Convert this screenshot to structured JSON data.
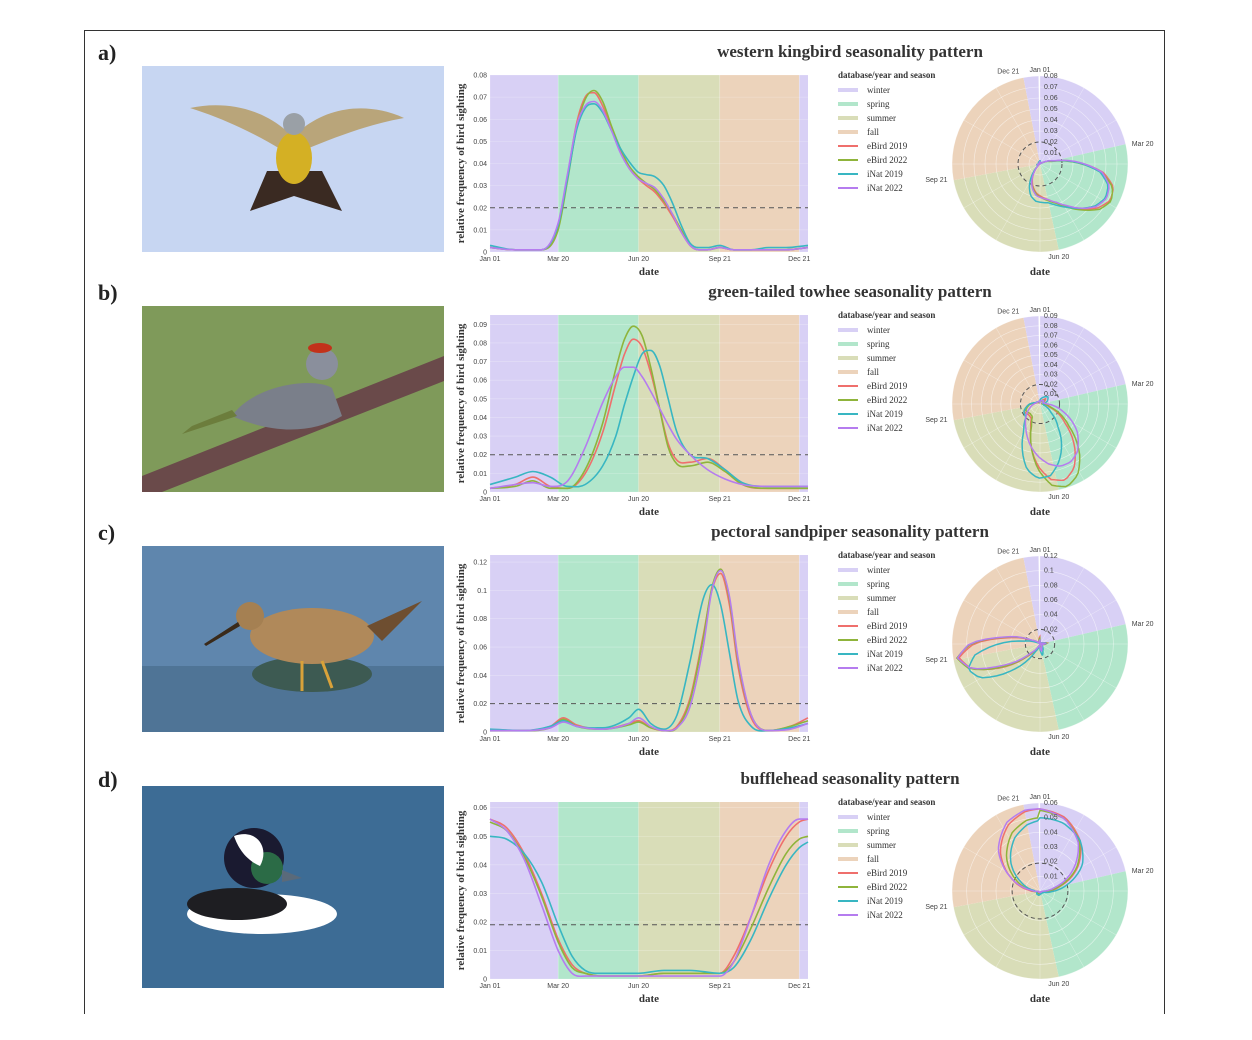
{
  "colors": {
    "winter": "#d8d0f5",
    "spring": "#b2e6cb",
    "summer": "#d9ddb8",
    "fall": "#ecd3bb",
    "eBird 2019": "#ef6f6c",
    "eBird 2022": "#8fb43b",
    "iNat 2019": "#38b6c2",
    "iNat 2022": "#b57cef"
  },
  "panels": [
    {
      "label": "a)",
      "title": "western kingbird seasonality pattern",
      "photo_icon": "western-kingbird-photo",
      "legend_title": "database/year and season",
      "legend_items": [
        "winter",
        "spring",
        "summer",
        "fall",
        "eBird 2019",
        "eBird 2022",
        "iNat 2019",
        "iNat 2022"
      ],
      "xlabel": "date",
      "ylabel": "relative frequency of bird sighting",
      "polar_xlabel": "date"
    },
    {
      "label": "b)",
      "title": "green-tailed towhee seasonality pattern",
      "photo_icon": "green-tailed-towhee-photo",
      "legend_title": "database/year and season",
      "legend_items": [
        "winter",
        "spring",
        "summer",
        "fall",
        "eBird 2019",
        "eBird 2022",
        "iNat 2019",
        "iNat 2022"
      ],
      "xlabel": "date",
      "ylabel": "relative frequency of bird sighting",
      "polar_xlabel": "date"
    },
    {
      "label": "c)",
      "title": "pectoral sandpiper seasonality pattern",
      "photo_icon": "pectoral-sandpiper-photo",
      "legend_title": "database/year and season",
      "legend_items": [
        "winter",
        "spring",
        "summer",
        "fall",
        "eBird 2019",
        "eBird 2022",
        "iNat 2019",
        "iNat 2022"
      ],
      "xlabel": "date",
      "ylabel": "relative frequency of bird sighting",
      "polar_xlabel": "date"
    },
    {
      "label": "d)",
      "title": "bufflehead seasonality pattern",
      "photo_icon": "bufflehead-photo",
      "legend_title": "database/year and season",
      "legend_items": [
        "winter",
        "spring",
        "summer",
        "fall",
        "eBird 2019",
        "eBird 2022",
        "iNat 2019",
        "iNat 2022"
      ],
      "xlabel": "date",
      "ylabel": "relative frequency of bird sighting",
      "polar_xlabel": "date"
    }
  ],
  "chart_data": [
    {
      "type": "line",
      "title": "western kingbird seasonality pattern",
      "xlabel": "date",
      "ylabel": "relative frequency of bird sighting",
      "x_ticks": [
        "Jan 01",
        "Mar 20",
        "Jun 20",
        "Sep 21",
        "Dec 21"
      ],
      "x_tick_days": [
        1,
        79,
        171,
        264,
        355
      ],
      "y_ticks": [
        0,
        0.01,
        0.02,
        0.03,
        0.04,
        0.05,
        0.06,
        0.07,
        0.08
      ],
      "ylim": [
        0,
        0.08
      ],
      "threshold": 0.02,
      "seasons": [
        {
          "name": "winter",
          "start": 1,
          "end": 79
        },
        {
          "name": "spring",
          "start": 79,
          "end": 171
        },
        {
          "name": "summer",
          "start": 171,
          "end": 264
        },
        {
          "name": "fall",
          "start": 264,
          "end": 355
        },
        {
          "name": "winter",
          "start": 355,
          "end": 365
        }
      ],
      "x_days": [
        1,
        30,
        60,
        79,
        90,
        100,
        110,
        120,
        130,
        140,
        150,
        160,
        171,
        180,
        190,
        200,
        210,
        220,
        230,
        240,
        250,
        264,
        280,
        300,
        320,
        340,
        365
      ],
      "series": [
        {
          "name": "eBird 2019",
          "values": [
            0.002,
            0.001,
            0.001,
            0.012,
            0.035,
            0.058,
            0.07,
            0.072,
            0.066,
            0.056,
            0.046,
            0.038,
            0.033,
            0.03,
            0.027,
            0.022,
            0.016,
            0.009,
            0.003,
            0.001,
            0.001,
            0.002,
            0.001,
            0.001,
            0.001,
            0.001,
            0.002
          ]
        },
        {
          "name": "eBird 2022",
          "values": [
            0.002,
            0.001,
            0.001,
            0.01,
            0.033,
            0.056,
            0.069,
            0.073,
            0.068,
            0.057,
            0.047,
            0.039,
            0.034,
            0.031,
            0.028,
            0.023,
            0.017,
            0.01,
            0.003,
            0.001,
            0.001,
            0.002,
            0.001,
            0.001,
            0.001,
            0.001,
            0.002
          ]
        },
        {
          "name": "iNat 2019",
          "values": [
            0.003,
            0.001,
            0.001,
            0.012,
            0.034,
            0.055,
            0.065,
            0.067,
            0.063,
            0.055,
            0.047,
            0.041,
            0.036,
            0.035,
            0.034,
            0.03,
            0.022,
            0.012,
            0.004,
            0.002,
            0.002,
            0.003,
            0.001,
            0.001,
            0.002,
            0.002,
            0.003
          ]
        },
        {
          "name": "iNat 2022",
          "values": [
            0.002,
            0.001,
            0.001,
            0.013,
            0.036,
            0.057,
            0.066,
            0.068,
            0.064,
            0.055,
            0.045,
            0.038,
            0.033,
            0.031,
            0.029,
            0.024,
            0.017,
            0.009,
            0.003,
            0.001,
            0.001,
            0.002,
            0.001,
            0.001,
            0.001,
            0.001,
            0.002
          ]
        }
      ],
      "polar": {
        "ticks": [
          0.01,
          0.02,
          0.03,
          0.04,
          0.05,
          0.06,
          0.07,
          0.08
        ],
        "max": 0.08,
        "angle_labels": [
          "Jan 01",
          "Mar 20",
          "Jun 20",
          "Sep 21",
          "Dec 21"
        ]
      }
    },
    {
      "type": "line",
      "title": "green-tailed towhee seasonality pattern",
      "xlabel": "date",
      "ylabel": "relative frequency of bird sighting",
      "x_ticks": [
        "Jan 01",
        "Mar 20",
        "Jun 20",
        "Sep 21",
        "Dec 21"
      ],
      "x_tick_days": [
        1,
        79,
        171,
        264,
        355
      ],
      "y_ticks": [
        0,
        0.01,
        0.02,
        0.03,
        0.04,
        0.05,
        0.06,
        0.07,
        0.08,
        0.09
      ],
      "ylim": [
        0,
        0.095
      ],
      "threshold": 0.02,
      "seasons": [
        {
          "name": "winter",
          "start": 1,
          "end": 79
        },
        {
          "name": "spring",
          "start": 79,
          "end": 171
        },
        {
          "name": "summer",
          "start": 171,
          "end": 264
        },
        {
          "name": "fall",
          "start": 264,
          "end": 355
        },
        {
          "name": "winter",
          "start": 355,
          "end": 365
        }
      ],
      "x_days": [
        1,
        30,
        50,
        70,
        90,
        110,
        130,
        145,
        155,
        165,
        175,
        185,
        195,
        205,
        215,
        230,
        250,
        270,
        290,
        320,
        365
      ],
      "series": [
        {
          "name": "eBird 2019",
          "values": [
            0.002,
            0.004,
            0.008,
            0.003,
            0.002,
            0.01,
            0.032,
            0.058,
            0.074,
            0.082,
            0.078,
            0.064,
            0.045,
            0.026,
            0.017,
            0.016,
            0.018,
            0.012,
            0.004,
            0.002,
            0.002
          ]
        },
        {
          "name": "eBird 2022",
          "values": [
            0.002,
            0.003,
            0.006,
            0.002,
            0.002,
            0.012,
            0.037,
            0.066,
            0.082,
            0.089,
            0.084,
            0.067,
            0.045,
            0.024,
            0.015,
            0.014,
            0.016,
            0.011,
            0.004,
            0.002,
            0.002
          ]
        },
        {
          "name": "iNat 2019",
          "values": [
            0.004,
            0.008,
            0.011,
            0.008,
            0.003,
            0.004,
            0.014,
            0.03,
            0.047,
            0.062,
            0.074,
            0.076,
            0.068,
            0.05,
            0.032,
            0.02,
            0.018,
            0.012,
            0.005,
            0.003,
            0.003
          ]
        },
        {
          "name": "iNat 2022",
          "values": [
            0.002,
            0.004,
            0.005,
            0.003,
            0.006,
            0.024,
            0.048,
            0.062,
            0.067,
            0.067,
            0.062,
            0.054,
            0.045,
            0.036,
            0.028,
            0.02,
            0.012,
            0.007,
            0.004,
            0.003,
            0.003
          ]
        }
      ],
      "polar": {
        "ticks": [
          0.01,
          0.02,
          0.03,
          0.04,
          0.05,
          0.06,
          0.07,
          0.08,
          0.09
        ],
        "max": 0.09,
        "angle_labels": [
          "Jan 01",
          "Mar 20",
          "Jun 20",
          "Sep 21",
          "Dec 21"
        ]
      }
    },
    {
      "type": "line",
      "title": "pectoral sandpiper seasonality pattern",
      "xlabel": "date",
      "ylabel": "relative frequency of bird sighting",
      "x_ticks": [
        "Jan 01",
        "Mar 20",
        "Jun 20",
        "Sep 21",
        "Dec 21"
      ],
      "x_tick_days": [
        1,
        79,
        171,
        264,
        355
      ],
      "y_ticks": [
        0,
        0.02,
        0.04,
        0.06,
        0.08,
        0.1,
        0.12
      ],
      "ylim": [
        0,
        0.125
      ],
      "threshold": 0.02,
      "seasons": [
        {
          "name": "winter",
          "start": 1,
          "end": 79
        },
        {
          "name": "spring",
          "start": 79,
          "end": 171
        },
        {
          "name": "summer",
          "start": 171,
          "end": 264
        },
        {
          "name": "fall",
          "start": 264,
          "end": 355
        },
        {
          "name": "winter",
          "start": 355,
          "end": 365
        }
      ],
      "x_days": [
        1,
        40,
        70,
        85,
        100,
        130,
        160,
        171,
        185,
        200,
        215,
        230,
        245,
        255,
        265,
        275,
        285,
        300,
        320,
        345,
        365
      ],
      "series": [
        {
          "name": "eBird 2019",
          "values": [
            0.001,
            0.001,
            0.004,
            0.01,
            0.005,
            0.002,
            0.006,
            0.008,
            0.003,
            0.001,
            0.004,
            0.024,
            0.068,
            0.1,
            0.112,
            0.09,
            0.046,
            0.01,
            0.001,
            0.004,
            0.01
          ]
        },
        {
          "name": "eBird 2022",
          "values": [
            0.001,
            0.001,
            0.003,
            0.009,
            0.004,
            0.002,
            0.005,
            0.007,
            0.003,
            0.001,
            0.003,
            0.022,
            0.066,
            0.102,
            0.115,
            0.094,
            0.05,
            0.012,
            0.001,
            0.004,
            0.008
          ]
        },
        {
          "name": "iNat 2019",
          "values": [
            0.002,
            0.001,
            0.004,
            0.008,
            0.004,
            0.003,
            0.01,
            0.016,
            0.006,
            0.002,
            0.012,
            0.05,
            0.094,
            0.104,
            0.09,
            0.056,
            0.022,
            0.004,
            0.001,
            0.003,
            0.006
          ]
        },
        {
          "name": "iNat 2022",
          "values": [
            0.001,
            0.001,
            0.003,
            0.007,
            0.004,
            0.002,
            0.006,
            0.01,
            0.004,
            0.001,
            0.003,
            0.018,
            0.06,
            0.1,
            0.114,
            0.096,
            0.052,
            0.012,
            0.001,
            0.002,
            0.006
          ]
        }
      ],
      "polar": {
        "ticks": [
          0.02,
          0.04,
          0.06,
          0.08,
          0.1,
          0.12
        ],
        "max": 0.12,
        "angle_labels": [
          "Jan 01",
          "Mar 20",
          "Jun 20",
          "Sep 21",
          "Dec 21"
        ]
      }
    },
    {
      "type": "line",
      "title": "bufflehead seasonality pattern",
      "xlabel": "date",
      "ylabel": "relative frequency of bird sighting",
      "x_ticks": [
        "Jan 01",
        "Mar 20",
        "Jun 20",
        "Sep 21",
        "Dec 21"
      ],
      "x_tick_days": [
        1,
        79,
        171,
        264,
        355
      ],
      "y_ticks": [
        0,
        0.01,
        0.02,
        0.03,
        0.04,
        0.05,
        0.06
      ],
      "ylim": [
        0,
        0.062
      ],
      "threshold": 0.019,
      "seasons": [
        {
          "name": "winter",
          "start": 1,
          "end": 79
        },
        {
          "name": "spring",
          "start": 79,
          "end": 171
        },
        {
          "name": "summer",
          "start": 171,
          "end": 264
        },
        {
          "name": "fall",
          "start": 264,
          "end": 355
        },
        {
          "name": "winter",
          "start": 355,
          "end": 365
        }
      ],
      "x_days": [
        1,
        20,
        40,
        60,
        79,
        95,
        110,
        130,
        171,
        200,
        230,
        264,
        280,
        300,
        320,
        340,
        355,
        365
      ],
      "series": [
        {
          "name": "eBird 2019",
          "values": [
            0.056,
            0.053,
            0.044,
            0.03,
            0.014,
            0.005,
            0.002,
            0.001,
            0.001,
            0.002,
            0.002,
            0.002,
            0.008,
            0.022,
            0.038,
            0.05,
            0.055,
            0.056
          ]
        },
        {
          "name": "eBird 2022",
          "values": [
            0.055,
            0.052,
            0.043,
            0.029,
            0.013,
            0.004,
            0.002,
            0.001,
            0.001,
            0.002,
            0.002,
            0.002,
            0.006,
            0.018,
            0.032,
            0.044,
            0.049,
            0.05
          ]
        },
        {
          "name": "iNat 2019",
          "values": [
            0.05,
            0.049,
            0.044,
            0.034,
            0.019,
            0.008,
            0.003,
            0.002,
            0.002,
            0.003,
            0.003,
            0.002,
            0.004,
            0.014,
            0.028,
            0.04,
            0.046,
            0.048
          ]
        },
        {
          "name": "iNat 2022",
          "values": [
            0.056,
            0.052,
            0.042,
            0.026,
            0.01,
            0.002,
            0.001,
            0.001,
            0.001,
            0.001,
            0.001,
            0.001,
            0.006,
            0.022,
            0.04,
            0.052,
            0.056,
            0.056
          ]
        }
      ],
      "polar": {
        "ticks": [
          0.01,
          0.02,
          0.03,
          0.04,
          0.05,
          0.06
        ],
        "max": 0.06,
        "angle_labels": [
          "Jan 01",
          "Mar 20",
          "Jun 20",
          "Sep 21",
          "Dec 21"
        ]
      }
    }
  ]
}
